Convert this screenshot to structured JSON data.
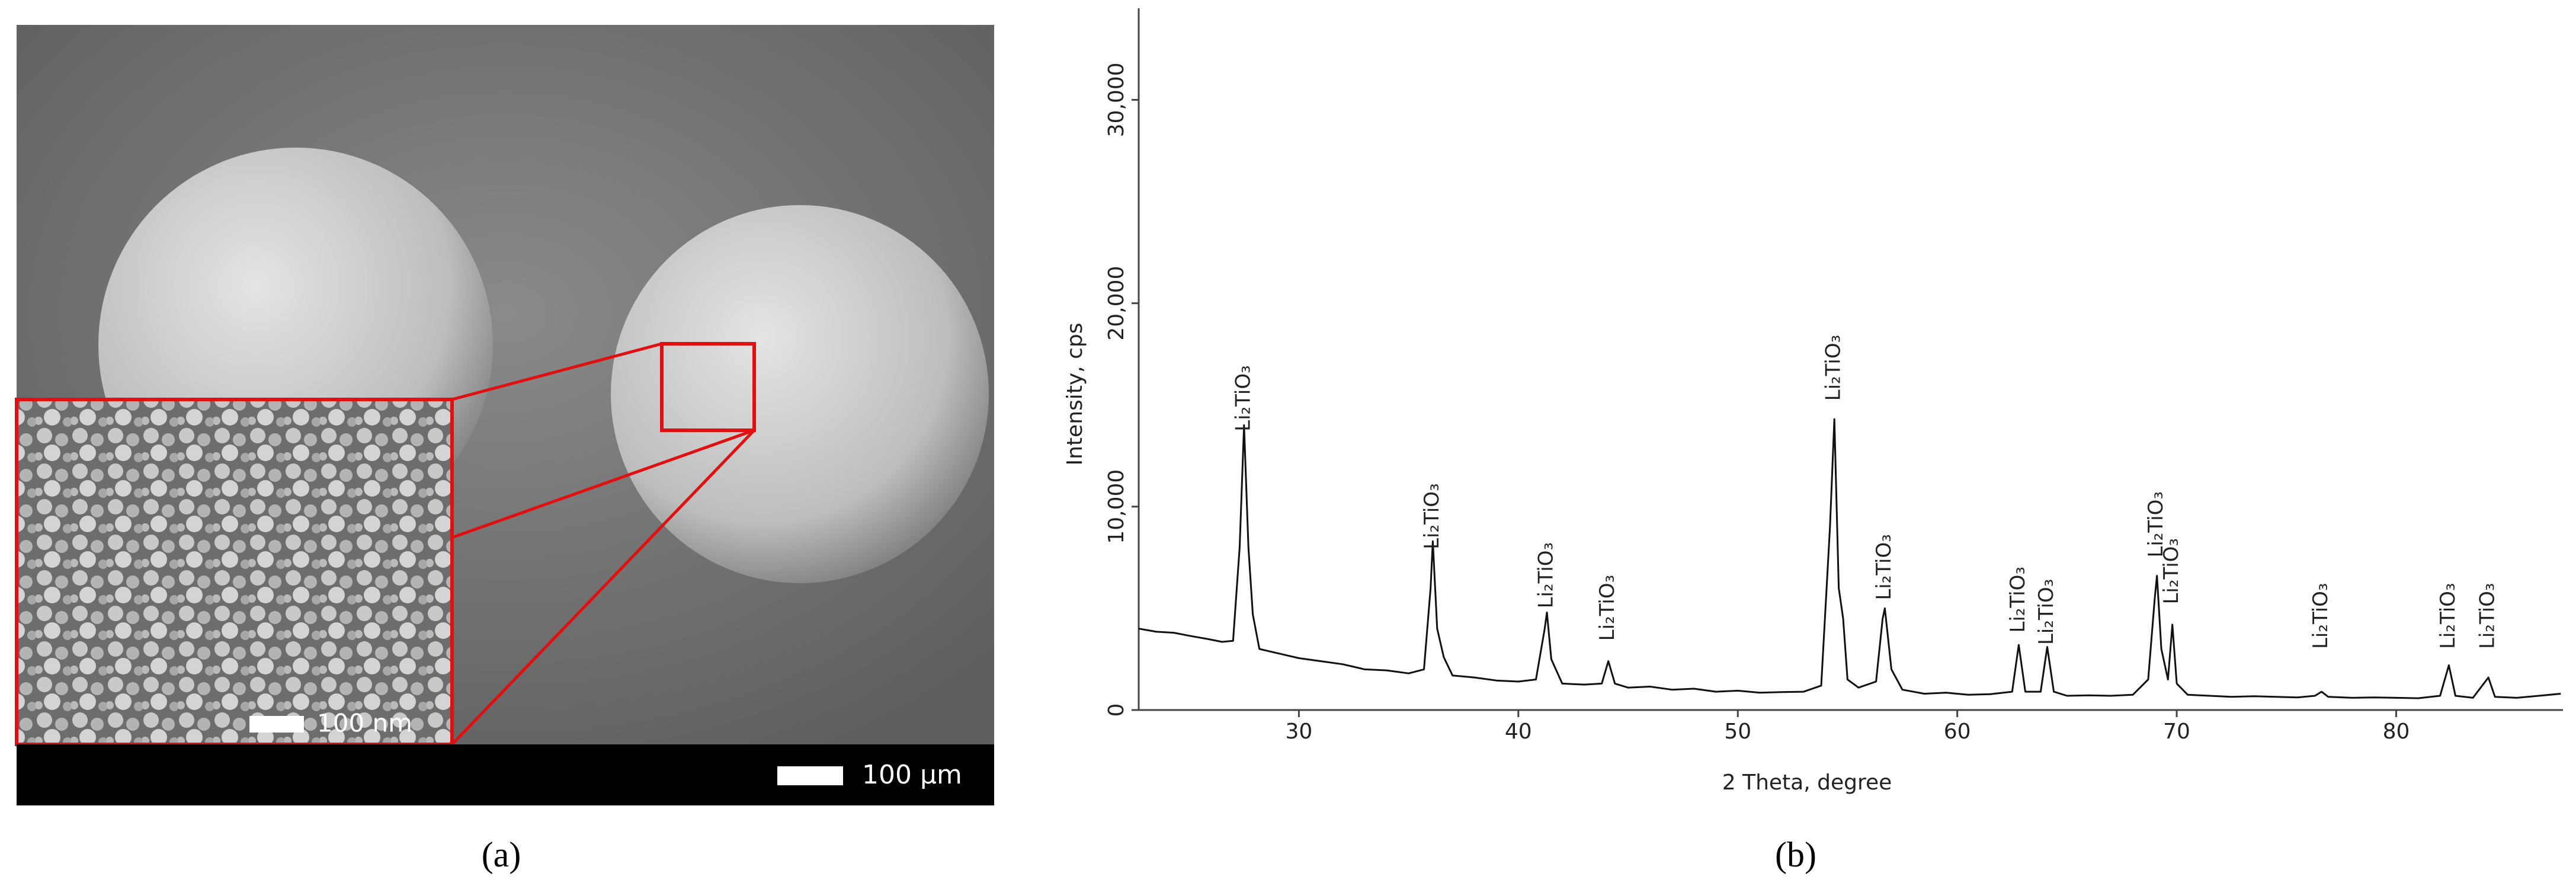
{
  "panel_a": {
    "caption": "(a)",
    "scale_bar": "100 µm",
    "inset_scale_bar": "100 nm"
  },
  "chart_data": {
    "type": "line",
    "caption": "(b)",
    "xlabel": "2 Theta, degree",
    "ylabel": "Intensity, cps",
    "color": "#111111",
    "xlim": [
      22.7,
      87.6
    ],
    "ylim": [
      0,
      34500
    ],
    "xticks": [
      30,
      40,
      50,
      60,
      70,
      80
    ],
    "yticks": [
      0,
      {
        "value": 10000,
        "label": "10,000"
      },
      {
        "value": 20000,
        "label": "20,000"
      },
      {
        "value": 30000,
        "label": "30,000"
      }
    ],
    "x": [
      22.7,
      23.5,
      24.3,
      25.0,
      25.8,
      26.5,
      27.0,
      27.3,
      27.5,
      27.7,
      27.9,
      28.2,
      29.0,
      30.0,
      31.0,
      32.0,
      33.0,
      34.0,
      35.0,
      35.7,
      36.0,
      36.1,
      36.3,
      36.6,
      37.0,
      38.0,
      39.0,
      40.0,
      40.8,
      41.2,
      41.3,
      41.5,
      42.0,
      43.0,
      43.8,
      44.1,
      44.4,
      45.0,
      46.0,
      47.0,
      48.0,
      49.0,
      50.0,
      51.0,
      52.0,
      53.0,
      53.8,
      54.2,
      54.4,
      54.6,
      54.8,
      55.0,
      55.5,
      56.3,
      56.6,
      56.7,
      57.0,
      57.5,
      58.5,
      59.5,
      60.5,
      61.5,
      62.5,
      62.8,
      63.1,
      63.8,
      64.1,
      64.4,
      65.0,
      66.0,
      67.0,
      68.0,
      68.7,
      69.0,
      69.1,
      69.3,
      69.6,
      69.8,
      70.0,
      70.5,
      71.5,
      72.5,
      73.5,
      74.5,
      75.5,
      76.3,
      76.6,
      76.9,
      78.0,
      79.0,
      80.0,
      81.0,
      82.0,
      82.4,
      82.7,
      83.5,
      84.2,
      84.5,
      85.5,
      86.5,
      87.5
    ],
    "values": [
      4000,
      3850,
      3800,
      3650,
      3500,
      3350,
      3400,
      8000,
      14000,
      8000,
      4700,
      3000,
      2800,
      2550,
      2400,
      2250,
      2000,
      1950,
      1800,
      2000,
      6000,
      8300,
      4000,
      2600,
      1700,
      1600,
      1450,
      1400,
      1500,
      4000,
      4800,
      2500,
      1300,
      1250,
      1300,
      2400,
      1300,
      1100,
      1150,
      1000,
      1050,
      900,
      950,
      850,
      880,
      900,
      1200,
      9000,
      14300,
      6000,
      4500,
      1500,
      1100,
      1400,
      4500,
      5000,
      2000,
      1000,
      800,
      850,
      750,
      780,
      900,
      3200,
      900,
      900,
      3100,
      900,
      700,
      720,
      700,
      750,
      1500,
      5500,
      6600,
      3000,
      1500,
      4200,
      1300,
      750,
      700,
      650,
      680,
      650,
      620,
      700,
      900,
      650,
      600,
      620,
      600,
      580,
      700,
      2200,
      700,
      600,
      1600,
      650,
      600,
      700,
      800
    ],
    "annotations": [
      {
        "text": "Li₂TiO₃",
        "x": 27.5,
        "y": 13700
      },
      {
        "text": "Li₂TiO₃",
        "x": 36.1,
        "y": 7900
      },
      {
        "text": "Li₂TiO₃",
        "x": 41.3,
        "y": 5000
      },
      {
        "text": "Li₂TiO₃",
        "x": 44.1,
        "y": 3400
      },
      {
        "text": "Li₂TiO₃",
        "x": 54.4,
        "y": 15200
      },
      {
        "text": "Li₂TiO₃",
        "x": 56.7,
        "y": 5400
      },
      {
        "text": "Li₂TiO₃",
        "x": 62.8,
        "y": 3800
      },
      {
        "text": "Li₂TiO₃",
        "x": 64.1,
        "y": 3200
      },
      {
        "text": "Li₂TiO₃",
        "x": 69.1,
        "y": 7500
      },
      {
        "text": "Li₂TiO₃",
        "x": 69.8,
        "y": 5200
      },
      {
        "text": "Li₂TiO₃",
        "x": 76.6,
        "y": 3000
      },
      {
        "text": "Li₂TiO₃",
        "x": 82.4,
        "y": 3000
      },
      {
        "text": "Li₂TiO₃",
        "x": 84.2,
        "y": 3000
      }
    ]
  }
}
